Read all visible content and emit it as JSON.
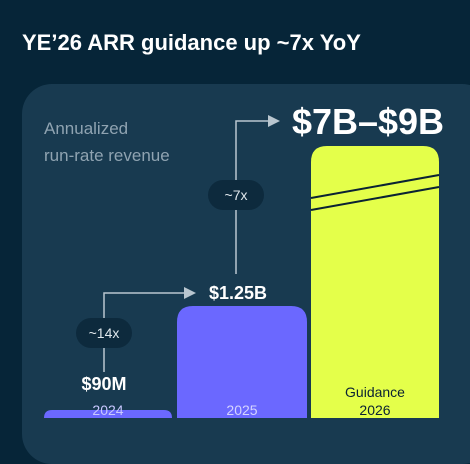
{
  "header": {
    "title": "YE’26 ARR guidance up ~7x YoY"
  },
  "colors": {
    "background": "#062538",
    "card": "#183a50",
    "bar_purple": "#6b68ff",
    "bar_lime": "#e4ff4a",
    "arrow": "#b9c6cf",
    "badge": "#0d2a3d",
    "text_light": "#ffffff",
    "text_muted": "#8fa3b1",
    "text_dark": "#0a2233"
  },
  "chart_data": {
    "type": "bar",
    "title": "Annualized run-rate revenue",
    "title_lines": [
      "Annualized",
      "run-rate revenue"
    ],
    "unit": "USD billions",
    "categories": [
      "2024",
      "2025",
      "Guidance 2026"
    ],
    "category_lines": [
      [
        "2024"
      ],
      [
        "2025"
      ],
      [
        "Guidance",
        "2026"
      ]
    ],
    "values": [
      0.09,
      1.25,
      8.0
    ],
    "value_labels": [
      "$90M",
      "$1.25B",
      "$7B–$9B"
    ],
    "guidance_range": [
      7,
      9
    ],
    "axis_break_on_last_bar": true,
    "growth_annotations": [
      {
        "label": "~14x",
        "from": "2024",
        "to": "2025"
      },
      {
        "label": "~7x",
        "from": "2025",
        "to": "Guidance 2026"
      }
    ],
    "gridlines": false,
    "legend": "none"
  }
}
